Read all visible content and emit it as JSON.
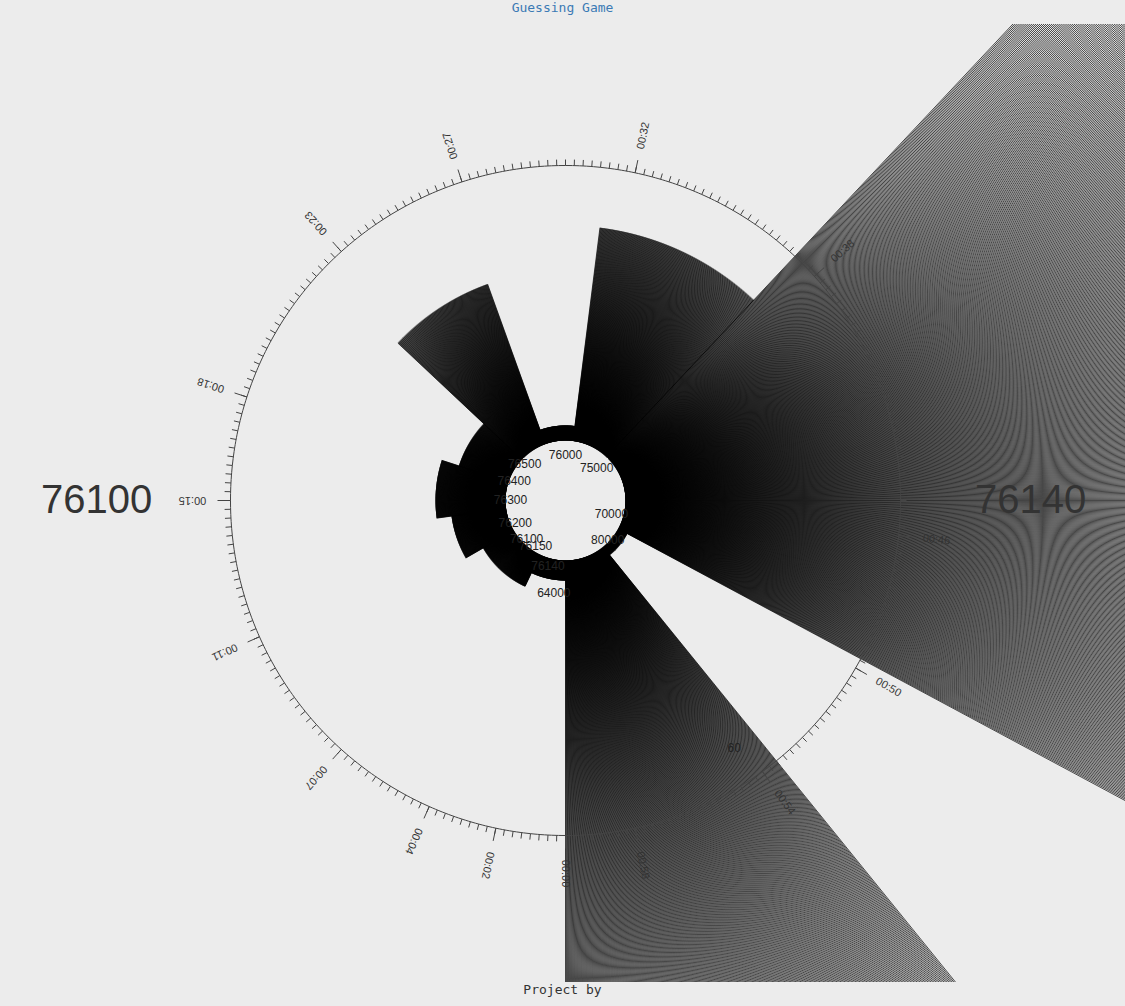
{
  "chart_data": {
    "type": "radial_bar",
    "title": "Guessing Game",
    "footer": "Project by",
    "bounds": [
      76100,
      76140
    ],
    "xlim": [
      0,
      60
    ],
    "xticks": [
      {
        "value": 0,
        "label": "00:00"
      },
      {
        "value": 2,
        "label": "00:02"
      },
      {
        "value": 4,
        "label": "00:04"
      },
      {
        "value": 7,
        "label": "00:07"
      },
      {
        "value": 11,
        "label": "00:11"
      },
      {
        "value": 15,
        "label": "00:15"
      },
      {
        "value": 18,
        "label": "00:18"
      },
      {
        "value": 23,
        "label": "00:23"
      },
      {
        "value": 27,
        "label": "00:27"
      },
      {
        "value": 32,
        "label": "00:32"
      },
      {
        "value": 38,
        "label": "00:38"
      },
      {
        "value": 46,
        "label": "00:46"
      },
      {
        "value": 50,
        "label": "00:50"
      },
      {
        "value": 54,
        "label": "00:54"
      },
      {
        "value": 58,
        "label": "00:58"
      }
    ],
    "start": [
      0,
      4.2,
      10,
      13.7,
      18,
      22.2,
      26.7,
      31.2,
      37.2,
      49.7,
      53.5
    ],
    "end": [
      4.2,
      10,
      13.7,
      18,
      22.2,
      26.7,
      31.2,
      37.2,
      49.7,
      53.5,
      60
    ],
    "values": [
      80,
      95,
      115,
      130,
      112,
      230,
      75,
      275,
      1000,
      70,
      1000
    ],
    "color": "#000000",
    "annotations": [
      {
        "text": "64000",
        "x": 1.2,
        "y": 93
      },
      {
        "text": "76140",
        "x": 2.5,
        "y": 68
      },
      {
        "text": "76150",
        "x": 5.5,
        "y": 55
      },
      {
        "text": "76100",
        "x": 7.5,
        "y": 55
      },
      {
        "text": "76200",
        "x": 11,
        "y": 55
      },
      {
        "text": "76300",
        "x": 15,
        "y": 55
      },
      {
        "text": "76400",
        "x": 18.5,
        "y": 55
      },
      {
        "text": "76500",
        "x": 22,
        "y": 55
      },
      {
        "text": "76000",
        "x": 30,
        "y": 45
      },
      {
        "text": "75000",
        "x": 37.3,
        "y": 45
      },
      {
        "text": "70000",
        "x": 47.8,
        "y": 48
      },
      {
        "text": "80000",
        "x": 52.2,
        "y": 58
      },
      {
        "text": "60",
        "x": 54.3,
        "y": 300
      }
    ],
    "tick_labels": "x"
  }
}
